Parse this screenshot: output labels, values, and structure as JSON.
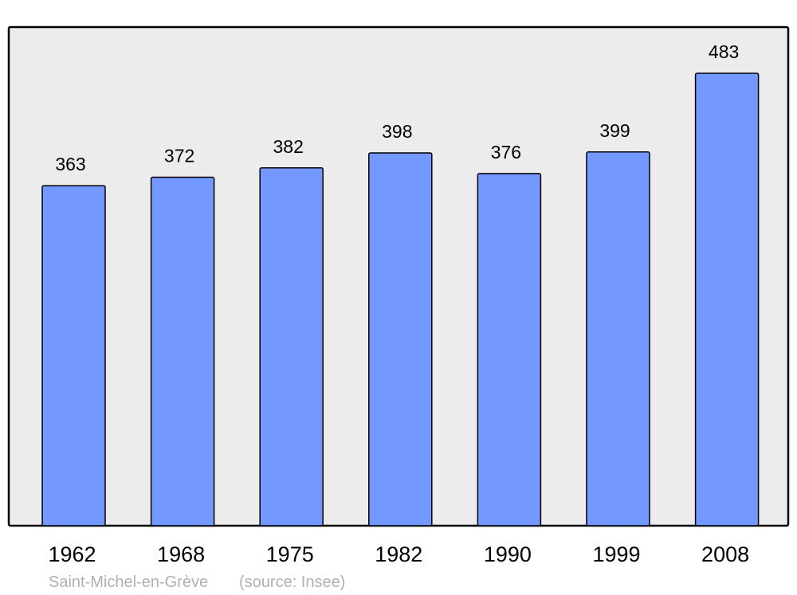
{
  "chart_data": {
    "type": "bar",
    "categories": [
      "1962",
      "1968",
      "1975",
      "1982",
      "1990",
      "1999",
      "2008"
    ],
    "values": [
      363,
      372,
      382,
      398,
      376,
      399,
      483
    ],
    "title": "",
    "xlabel": "",
    "ylabel": "",
    "ylim": [
      0,
      483
    ],
    "grid": false,
    "data_labels": true,
    "colors": {
      "bar": "#7399ff",
      "plot_background": "#ececec",
      "border": "#000000"
    }
  },
  "footer": {
    "place": "Saint-Michel-en-Grève",
    "source": "(source: Insee)"
  }
}
